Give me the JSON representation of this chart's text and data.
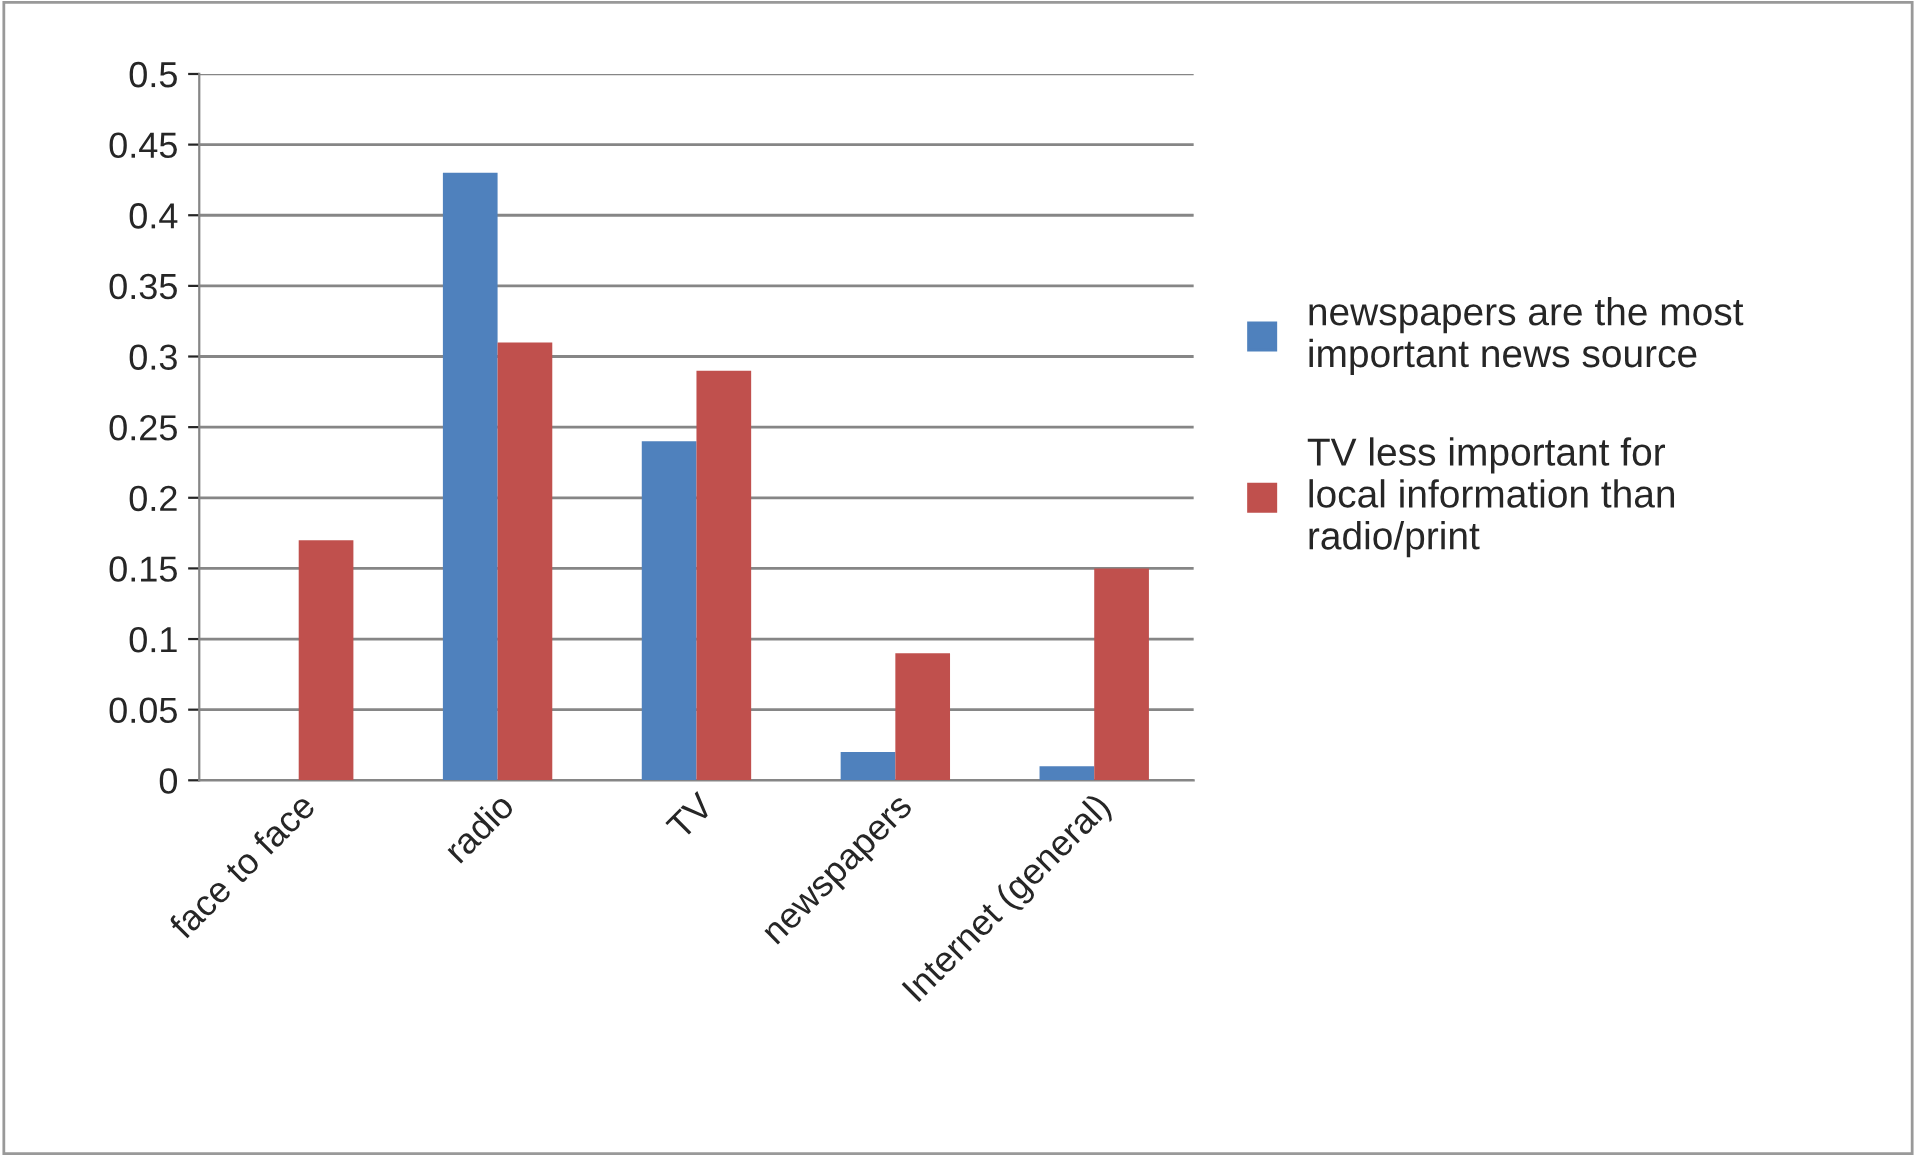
{
  "chart_data": {
    "type": "bar",
    "categories": [
      "face to face",
      "radio",
      "TV",
      "newspapers",
      "Internet (general)"
    ],
    "series": [
      {
        "name": "newspapers are the most important news source",
        "color": "#4f81bd",
        "values": [
          null,
          0.43,
          0.24,
          0.02,
          0.01
        ]
      },
      {
        "name": "TV less important for local information than radio/print",
        "color": "#c0504d",
        "values": [
          0.17,
          0.31,
          0.29,
          0.09,
          0.15
        ]
      }
    ],
    "ylim": [
      0,
      0.5
    ],
    "yticks": [
      0,
      0.05,
      0.1,
      0.15,
      0.2,
      0.25,
      0.3,
      0.35,
      0.4,
      0.45,
      0.5
    ],
    "grid": "y",
    "legend": "right"
  }
}
